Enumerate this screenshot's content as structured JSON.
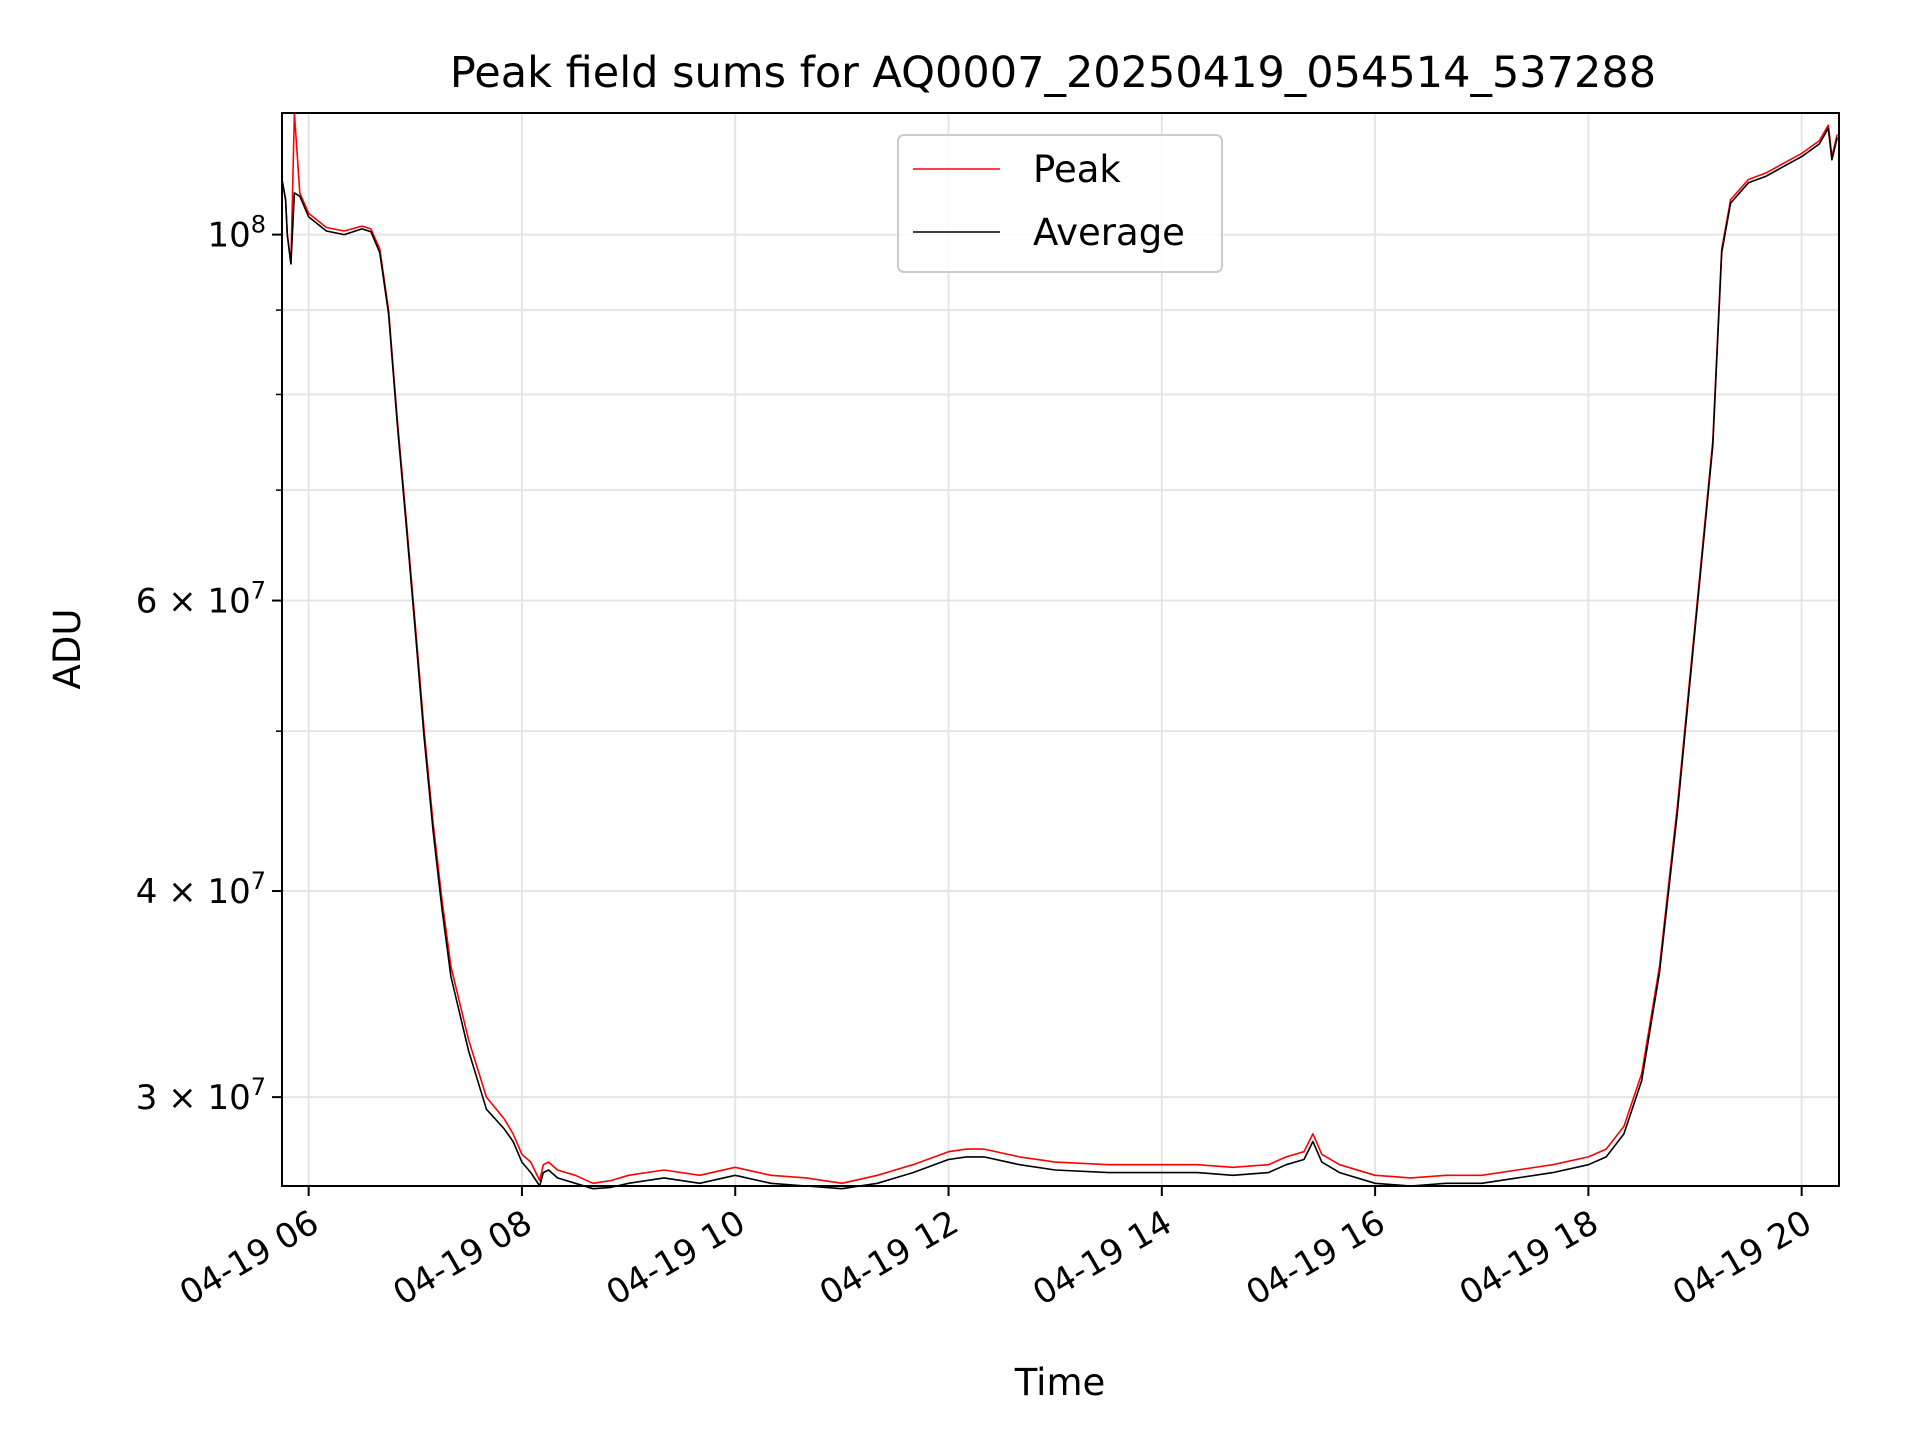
{
  "chart_data": {
    "type": "line",
    "title": "Peak field sums for AQ0007_20250419_054514_537288",
    "xlabel": "Time",
    "ylabel": "ADU",
    "yscale": "log",
    "xlim": [
      "04-19 05:45",
      "04-19 20:21"
    ],
    "ylim": [
      26500000,
      118500000
    ],
    "grid": true,
    "legend_position": "top-center",
    "x_tick_labels": [
      "04-19 06",
      "04-19 08",
      "04-19 10",
      "04-19 12",
      "04-19 14",
      "04-19 16",
      "04-19 18",
      "04-19 20"
    ],
    "x_tick_hours": [
      6,
      8,
      10,
      12,
      14,
      16,
      18,
      20
    ],
    "y_major_ticks": [
      {
        "value": 100000000,
        "base": "10",
        "exp": "8"
      },
      {
        "value": 60000000,
        "base": "6 × 10",
        "exp": "7"
      },
      {
        "value": 40000000,
        "base": "4 × 10",
        "exp": "7"
      },
      {
        "value": 30000000,
        "base": "3 × 10",
        "exp": "7"
      }
    ],
    "y_minor_ticks": [
      90000000,
      80000000,
      70000000,
      50000000
    ],
    "x": [
      "05:45",
      "05:47",
      "05:48",
      "05:50",
      "05:52",
      "05:55",
      "06:00",
      "06:10",
      "06:20",
      "06:30",
      "06:35",
      "06:40",
      "06:45",
      "06:50",
      "06:55",
      "07:00",
      "07:05",
      "07:10",
      "07:15",
      "07:20",
      "07:30",
      "07:40",
      "07:50",
      "07:55",
      "08:00",
      "08:05",
      "08:10",
      "08:12",
      "08:15",
      "08:20",
      "08:30",
      "08:40",
      "08:50",
      "09:00",
      "09:20",
      "09:40",
      "10:00",
      "10:20",
      "10:40",
      "11:00",
      "11:20",
      "11:40",
      "12:00",
      "12:10",
      "12:20",
      "12:40",
      "13:00",
      "13:30",
      "14:00",
      "14:20",
      "14:40",
      "15:00",
      "15:10",
      "15:20",
      "15:25",
      "15:30",
      "15:40",
      "16:00",
      "16:20",
      "16:40",
      "17:00",
      "17:20",
      "17:40",
      "18:00",
      "18:10",
      "18:20",
      "18:30",
      "18:40",
      "18:50",
      "19:00",
      "19:10",
      "19:15",
      "19:20",
      "19:30",
      "19:40",
      "19:50",
      "20:00",
      "20:10",
      "20:15",
      "20:17",
      "20:20"
    ],
    "series": [
      {
        "name": "Peak",
        "color": "#ff0000",
        "values": [
          108000000,
          105000000,
          100000000,
          96000000,
          118500000,
          106000000,
          103000000,
          101000000,
          100500000,
          101200000,
          100800000,
          98000000,
          90000000,
          77000000,
          67000000,
          58000000,
          50000000,
          44000000,
          39500000,
          36000000,
          32500000,
          30000000,
          29100000,
          28500000,
          27700000,
          27400000,
          26700000,
          27300000,
          27400000,
          27100000,
          26900000,
          26600000,
          26700000,
          26900000,
          27100000,
          26900000,
          27200000,
          26900000,
          26800000,
          26600000,
          26900000,
          27300000,
          27800000,
          27900000,
          27900000,
          27600000,
          27400000,
          27300000,
          27300000,
          27300000,
          27200000,
          27300000,
          27600000,
          27800000,
          28500000,
          27700000,
          27300000,
          26900000,
          26800000,
          26900000,
          26900000,
          27100000,
          27300000,
          27600000,
          27900000,
          28800000,
          31000000,
          36000000,
          45000000,
          58000000,
          75000000,
          98000000,
          105000000,
          108000000,
          109000000,
          110500000,
          112000000,
          114000000,
          116500000,
          111500000,
          115000000
        ]
      },
      {
        "name": "Average",
        "color": "#000000",
        "values": [
          108000000,
          105000000,
          100000000,
          96000000,
          106000000,
          105500000,
          102500000,
          100500000,
          100000000,
          100800000,
          100400000,
          97500000,
          89500000,
          76500000,
          66500000,
          57500000,
          49500000,
          43500000,
          39000000,
          35500000,
          32000000,
          29500000,
          28700000,
          28200000,
          27400000,
          27000000,
          26500000,
          27000000,
          27100000,
          26800000,
          26600000,
          26400000,
          26450000,
          26600000,
          26800000,
          26600000,
          26900000,
          26600000,
          26500000,
          26400000,
          26600000,
          27000000,
          27500000,
          27600000,
          27600000,
          27300000,
          27100000,
          27000000,
          27000000,
          27000000,
          26900000,
          27000000,
          27300000,
          27500000,
          28200000,
          27400000,
          27000000,
          26600000,
          26500000,
          26600000,
          26600000,
          26800000,
          27000000,
          27300000,
          27600000,
          28500000,
          30700000,
          35700000,
          44600000,
          57600000,
          74500000,
          97500000,
          104500000,
          107500000,
          108500000,
          110000000,
          111500000,
          113500000,
          116000000,
          111000000,
          114500000
        ]
      }
    ]
  }
}
